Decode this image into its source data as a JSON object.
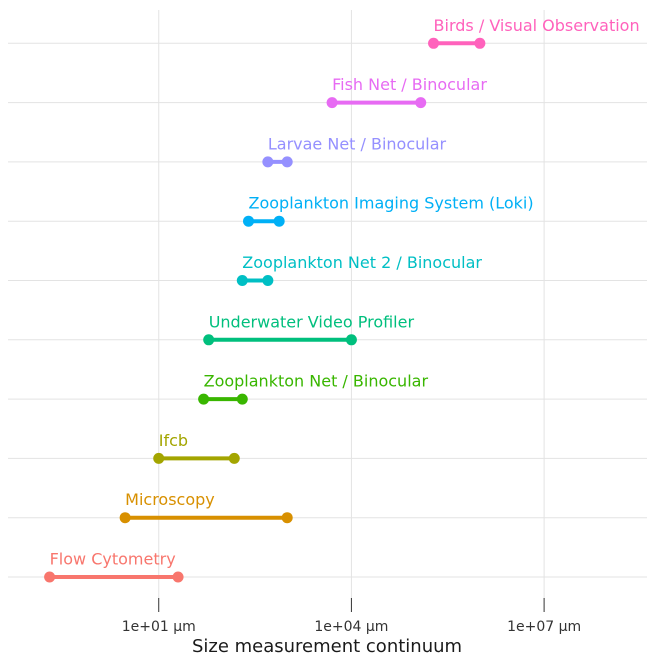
{
  "chart_data": {
    "type": "dumbbell",
    "x_label": "Size measurement continuum",
    "categories": [
      "Flow Cytometry",
      "Microscopy",
      "Ifcb",
      "Zooplankton Net / Binocular",
      "Underwater Video Profiler",
      "Zooplankton Net 2 / Binocular",
      "Zooplankton Imaging System (Loki)",
      "Larvae Net / Binocular",
      "Fish Net / Binocular",
      "Birds / Visual Observation"
    ],
    "starts": [
      0.2,
      3,
      10,
      50,
      60,
      200,
      250,
      500,
      5000,
      190000
    ],
    "ends": [
      20,
      1000,
      150,
      200,
      10000,
      500,
      750,
      1000,
      120000,
      1000000
    ],
    "colors": [
      "#F8766D",
      "#D89000",
      "#A3A500",
      "#39B600",
      "#00BF7D",
      "#00BFC4",
      "#00B0F6",
      "#9590FF",
      "#E76BF3",
      "#FF62BC"
    ],
    "x_log": true,
    "xlim": [
      0.045,
      400000000
    ],
    "xticks": [
      {
        "value": 10,
        "label": "1e+01 µm"
      },
      {
        "value": 10000,
        "label": "1e+04 µm"
      },
      {
        "value": 10000000,
        "label": "1e+07 µm"
      }
    ],
    "grid": true
  }
}
